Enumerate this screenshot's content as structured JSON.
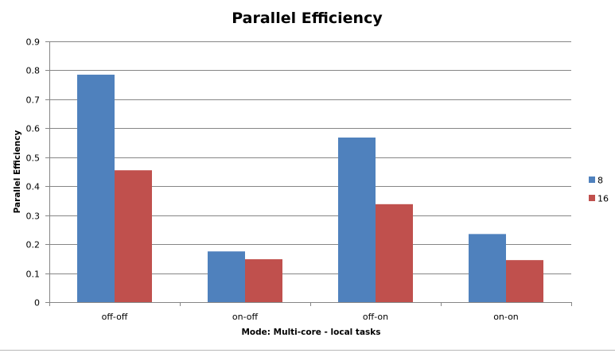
{
  "chart_data": {
    "type": "bar",
    "title": "Parallel Efficiency",
    "xlabel": "Mode: Multi-core  - local  tasks",
    "ylabel": "Parallel  Efficiency",
    "categories": [
      "off-off",
      "on-off",
      "off-on",
      "on-on"
    ],
    "series": [
      {
        "name": "8",
        "color": "#4f81bd",
        "values": [
          0.785,
          0.175,
          0.568,
          0.235
        ]
      },
      {
        "name": "16",
        "color": "#c0504d",
        "values": [
          0.455,
          0.148,
          0.338,
          0.145
        ]
      }
    ],
    "ylim": [
      0,
      0.9
    ],
    "yticks": [
      "0",
      "0.1",
      "0.2",
      "0.3",
      "0.4",
      "0.5",
      "0.6",
      "0.7",
      "0.8",
      "0.9"
    ],
    "grid": true,
    "legend_position": "right"
  }
}
